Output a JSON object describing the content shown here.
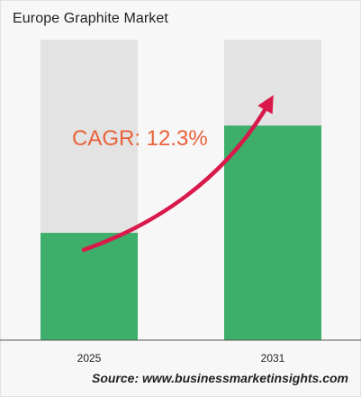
{
  "chart_data": {
    "type": "bar",
    "title": "Europe Graphite Market",
    "categories": [
      "2025",
      "2031"
    ],
    "values": [
      1.0,
      2.0
    ],
    "max": 2.8,
    "xlabel": "",
    "ylabel": "",
    "annotation": "CAGR: 12.3%",
    "source": "Source: www.businessmarketinsights.com",
    "colors": {
      "bar": "#3daf6b",
      "bar_background": "#e3e3e3",
      "arrow": "#d8194a",
      "annotation": "#e8623a"
    }
  }
}
